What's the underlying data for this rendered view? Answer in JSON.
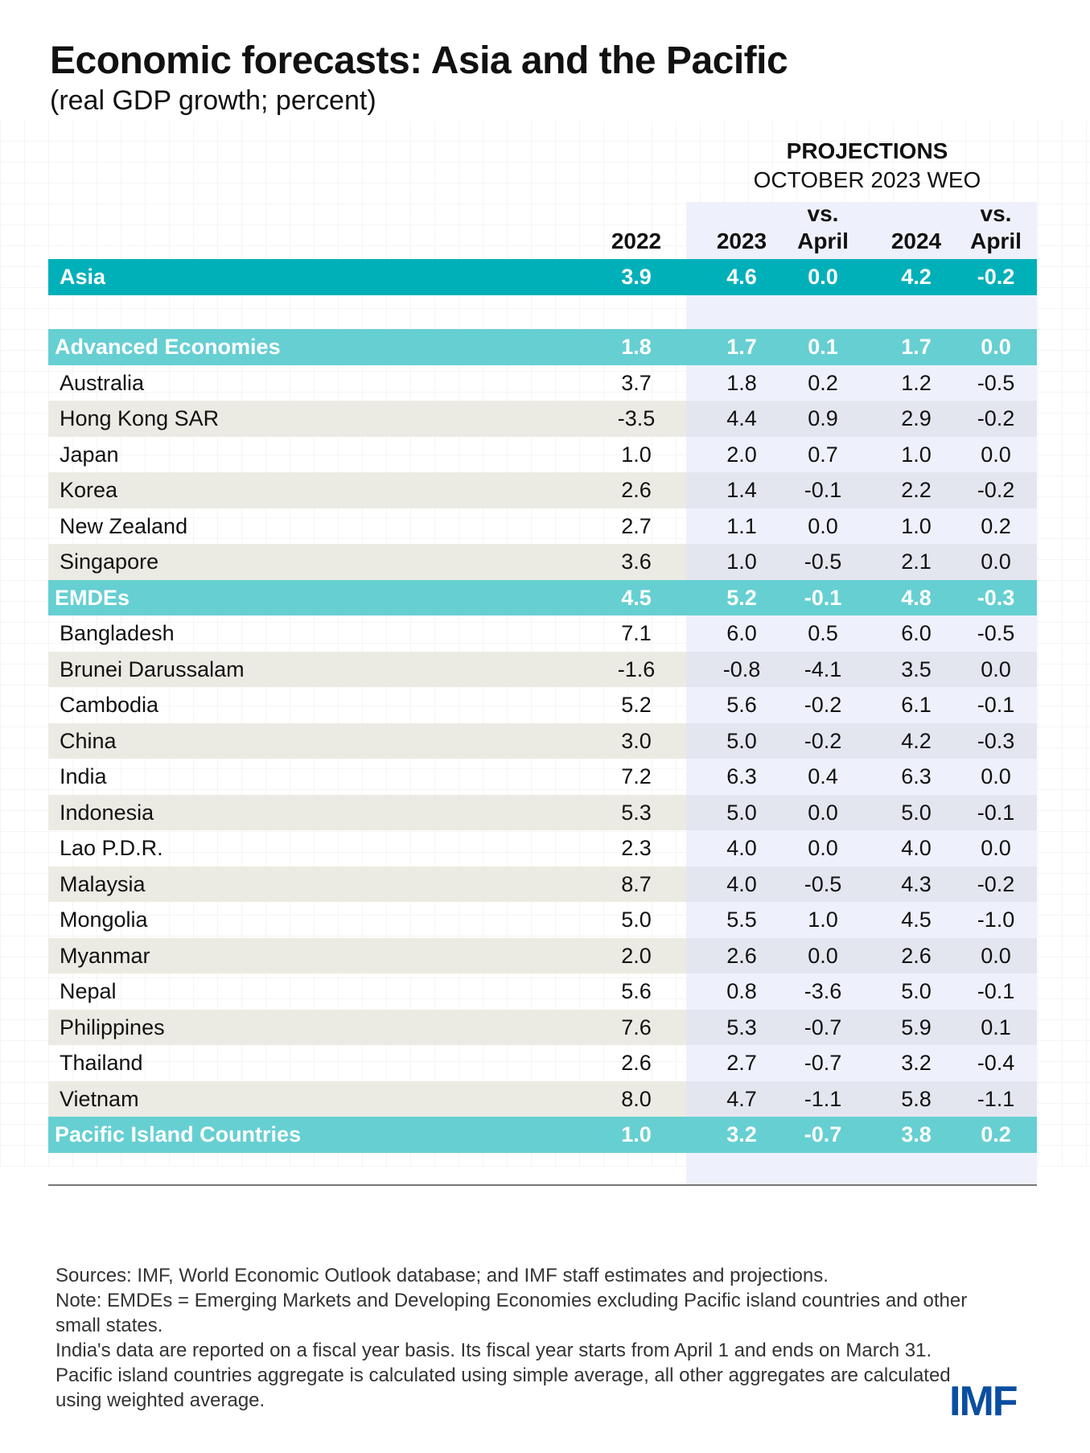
{
  "title": "Economic forecasts: Asia and the Pacific",
  "subtitle": "(real GDP growth; percent)",
  "projections": {
    "title": "PROJECTIONS",
    "subtitle": "OCTOBER 2023 WEO"
  },
  "columns": [
    {
      "top": "",
      "bottom": "2022"
    },
    {
      "top": "",
      "bottom": "2023"
    },
    {
      "top": "vs.",
      "bottom": "April"
    },
    {
      "top": "",
      "bottom": "2024"
    },
    {
      "top": "vs.",
      "bottom": "April"
    }
  ],
  "colors": {
    "asia_row": "#00b0b9",
    "aggregate_row": "#66cfd2",
    "stripe": "#ecebe3",
    "projection_shade": "#eef1fb",
    "logo": "#0a4ea0"
  },
  "rows": [
    {
      "name": "Asia",
      "type": "asia",
      "values": [
        "3.9",
        "4.6",
        "0.0",
        "4.2",
        "-0.2"
      ]
    },
    {
      "name": "Advanced Economies",
      "type": "agg",
      "values": [
        "1.8",
        "1.7",
        "0.1",
        "1.7",
        "0.0"
      ]
    },
    {
      "name": "Australia",
      "type": "white",
      "values": [
        "3.7",
        "1.8",
        "0.2",
        "1.2",
        "-0.5"
      ]
    },
    {
      "name": "Hong Kong SAR",
      "type": "stripe",
      "values": [
        "-3.5",
        "4.4",
        "0.9",
        "2.9",
        "-0.2"
      ]
    },
    {
      "name": "Japan",
      "type": "white",
      "values": [
        "1.0",
        "2.0",
        "0.7",
        "1.0",
        "0.0"
      ]
    },
    {
      "name": "Korea",
      "type": "stripe",
      "values": [
        "2.6",
        "1.4",
        "-0.1",
        "2.2",
        "-0.2"
      ]
    },
    {
      "name": "New Zealand",
      "type": "white",
      "values": [
        "2.7",
        "1.1",
        "0.0",
        "1.0",
        "0.2"
      ]
    },
    {
      "name": "Singapore",
      "type": "stripe",
      "values": [
        "3.6",
        "1.0",
        "-0.5",
        "2.1",
        "0.0"
      ]
    },
    {
      "name": "EMDEs",
      "type": "agg",
      "values": [
        "4.5",
        "5.2",
        "-0.1",
        "4.8",
        "-0.3"
      ]
    },
    {
      "name": "Bangladesh",
      "type": "white",
      "values": [
        "7.1",
        "6.0",
        "0.5",
        "6.0",
        "-0.5"
      ]
    },
    {
      "name": "Brunei Darussalam",
      "type": "stripe",
      "values": [
        "-1.6",
        "-0.8",
        "-4.1",
        "3.5",
        "0.0"
      ]
    },
    {
      "name": "Cambodia",
      "type": "white",
      "values": [
        "5.2",
        "5.6",
        "-0.2",
        "6.1",
        "-0.1"
      ]
    },
    {
      "name": "China",
      "type": "stripe",
      "values": [
        "3.0",
        "5.0",
        "-0.2",
        "4.2",
        "-0.3"
      ]
    },
    {
      "name": "India",
      "type": "white",
      "values": [
        "7.2",
        "6.3",
        "0.4",
        "6.3",
        "0.0"
      ]
    },
    {
      "name": "Indonesia",
      "type": "stripe",
      "values": [
        "5.3",
        "5.0",
        "0.0",
        "5.0",
        "-0.1"
      ]
    },
    {
      "name": "Lao P.D.R.",
      "type": "white",
      "values": [
        "2.3",
        "4.0",
        "0.0",
        "4.0",
        "0.0"
      ]
    },
    {
      "name": "Malaysia",
      "type": "stripe",
      "values": [
        "8.7",
        "4.0",
        "-0.5",
        "4.3",
        "-0.2"
      ]
    },
    {
      "name": "Mongolia",
      "type": "white",
      "values": [
        "5.0",
        "5.5",
        "1.0",
        "4.5",
        "-1.0"
      ]
    },
    {
      "name": "Myanmar",
      "type": "stripe",
      "values": [
        "2.0",
        "2.6",
        "0.0",
        "2.6",
        "0.0"
      ]
    },
    {
      "name": "Nepal",
      "type": "white",
      "values": [
        "5.6",
        "0.8",
        "-3.6",
        "5.0",
        "-0.1"
      ]
    },
    {
      "name": "Philippines",
      "type": "stripe",
      "values": [
        "7.6",
        "5.3",
        "-0.7",
        "5.9",
        "0.1"
      ]
    },
    {
      "name": "Thailand",
      "type": "white",
      "values": [
        "2.6",
        "2.7",
        "-0.7",
        "3.2",
        "-0.4"
      ]
    },
    {
      "name": "Vietnam",
      "type": "stripe",
      "values": [
        "8.0",
        "4.7",
        "-1.1",
        "5.8",
        "-1.1"
      ]
    },
    {
      "name": "Pacific Island Countries",
      "type": "agg",
      "values": [
        "1.0",
        "3.2",
        "-0.7",
        "3.8",
        "0.2"
      ]
    }
  ],
  "notes": [
    "Sources: IMF, World Economic Outlook database; and IMF staff estimates and projections.",
    "Note: EMDEs = Emerging Markets and Developing Economies excluding Pacific island countries and other small states.",
    "India's data are reported on a fiscal year basis. Its fiscal year starts from April 1 and ends on March 31. Pacific island countries aggregate is calculated using simple average, all other aggregates are calculated using weighted average."
  ],
  "logo": "IMF"
}
